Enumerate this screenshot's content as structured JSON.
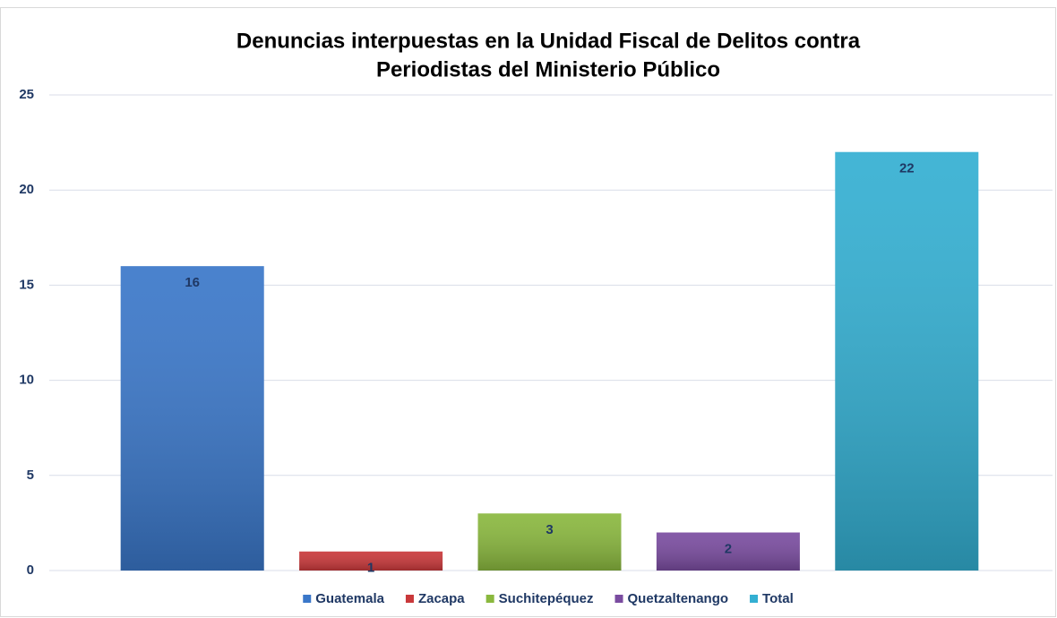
{
  "chart_data": {
    "type": "bar",
    "title": [
      "Denuncias interpuestas en la Unidad Fiscal de Delitos contra",
      "Periodistas del Ministerio Público"
    ],
    "series": [
      {
        "name": "Guatemala",
        "color": "#3a77c9",
        "values": [
          16
        ]
      },
      {
        "name": "Zacapa",
        "color": "#c9383a",
        "values": [
          1
        ]
      },
      {
        "name": "Suchitepéquez",
        "color": "#8ab83e",
        "values": [
          3
        ]
      },
      {
        "name": "Quetzaltenango",
        "color": "#7a4ca0",
        "values": [
          2
        ]
      },
      {
        "name": "Total",
        "color": "#33afd2",
        "values": [
          22
        ]
      }
    ],
    "ylim": [
      0,
      25
    ],
    "yticks": [
      0,
      5,
      10,
      15,
      20,
      25
    ],
    "grid": true
  }
}
